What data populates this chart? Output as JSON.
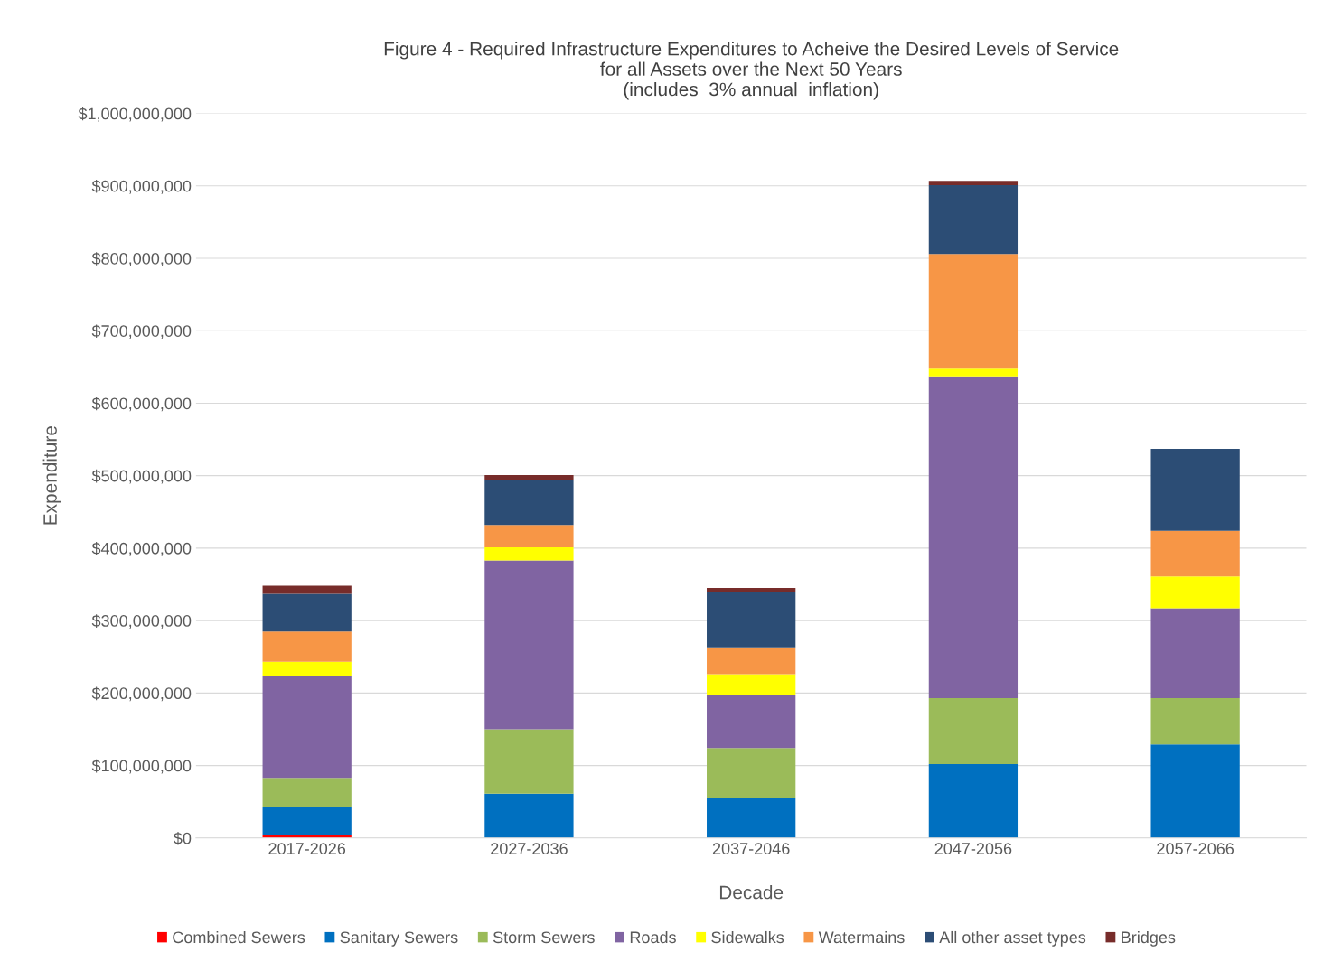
{
  "chart_data": {
    "type": "bar",
    "stacked": true,
    "title": "Figure 4 - Required Infrastructure Expenditures to Acheive the Desired Levels of Service\nfor all Assets over the Next 50 Years\n(includes  3% annual  inflation)",
    "xlabel": "Decade",
    "ylabel": "Expenditure",
    "categories": [
      "2017-2026",
      "2027-2036",
      "2037-2046",
      "2047-2056",
      "2057-2066"
    ],
    "series": [
      {
        "name": "Combined Sewers",
        "color": "#ff0000",
        "values": [
          4000000,
          0,
          0,
          0,
          0
        ]
      },
      {
        "name": "Sanitary Sewers",
        "color": "#0070c0",
        "values": [
          39000000,
          61000000,
          56000000,
          102000000,
          129000000
        ]
      },
      {
        "name": "Storm Sewers",
        "color": "#9bbb59",
        "values": [
          40000000,
          89000000,
          68000000,
          91000000,
          64000000
        ]
      },
      {
        "name": "Roads",
        "color": "#8064a2",
        "values": [
          140000000,
          233000000,
          73000000,
          444000000,
          124000000
        ]
      },
      {
        "name": "Sidewalks",
        "color": "#ffff00",
        "values": [
          20000000,
          18000000,
          29000000,
          12000000,
          44000000
        ]
      },
      {
        "name": "Watermains",
        "color": "#f79646",
        "values": [
          42000000,
          31000000,
          37000000,
          157000000,
          63000000
        ]
      },
      {
        "name": "All other asset types",
        "color": "#2c4d75",
        "values": [
          52000000,
          62000000,
          76000000,
          95000000,
          113000000
        ]
      },
      {
        "name": "Bridges",
        "color": "#772c2a",
        "values": [
          11000000,
          7000000,
          6000000,
          6000000,
          0
        ]
      }
    ],
    "ylim": [
      0,
      1000000000
    ],
    "yticks": [
      {
        "value": 0,
        "label": "$0"
      },
      {
        "value": 100000000,
        "label": "$100,000,000"
      },
      {
        "value": 200000000,
        "label": "$200,000,000"
      },
      {
        "value": 300000000,
        "label": "$300,000,000"
      },
      {
        "value": 400000000,
        "label": "$400,000,000"
      },
      {
        "value": 500000000,
        "label": "$500,000,000"
      },
      {
        "value": 600000000,
        "label": "$600,000,000"
      },
      {
        "value": 700000000,
        "label": "$700,000,000"
      },
      {
        "value": 800000000,
        "label": "$800,000,000"
      },
      {
        "value": 900000000,
        "label": "$900,000,000"
      },
      {
        "value": 1000000000,
        "label": "$1,000,000,000"
      }
    ],
    "grid": "y",
    "legend": "bottom"
  }
}
